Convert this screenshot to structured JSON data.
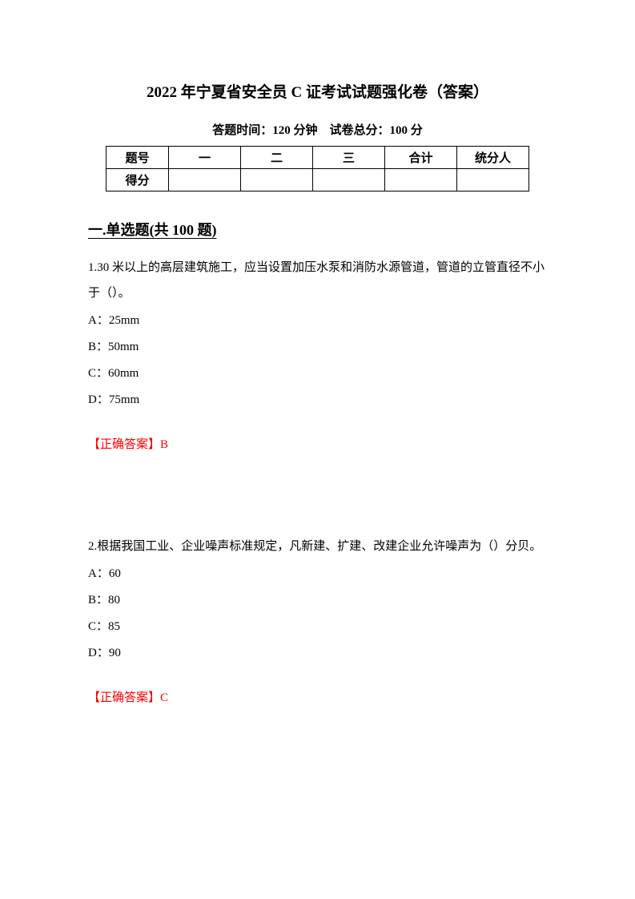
{
  "header": {
    "title": "2022 年宁夏省安全员 C 证考试试题强化卷（答案）",
    "subtitle": "答题时间：120 分钟 试卷总分：100 分"
  },
  "score_table": {
    "row1": {
      "label": "题号",
      "c1": "一",
      "c2": "二",
      "c3": "三",
      "c4": "合计",
      "c5": "统分人"
    },
    "row2": {
      "label": "得分",
      "c1": "",
      "c2": "",
      "c3": "",
      "c4": "",
      "c5": ""
    }
  },
  "section": {
    "heading": "一.单选题(共 100 题)"
  },
  "q1": {
    "text": "1.30 米以上的高层建筑施工，应当设置加压水泵和消防水源管道，管道的立管直径不小于（）。",
    "optA": "A：25mm",
    "optB": "B：50mm",
    "optC": "C：60mm",
    "optD": "D：75mm",
    "answer": "【正确答案】B"
  },
  "q2": {
    "text": "2.根据我国工业、企业噪声标准规定，凡新建、扩建、改建企业允许噪声为（）分贝。",
    "optA": "A：60",
    "optB": "B：80",
    "optC": "C：85",
    "optD": "D：90",
    "answer": "【正确答案】C"
  }
}
